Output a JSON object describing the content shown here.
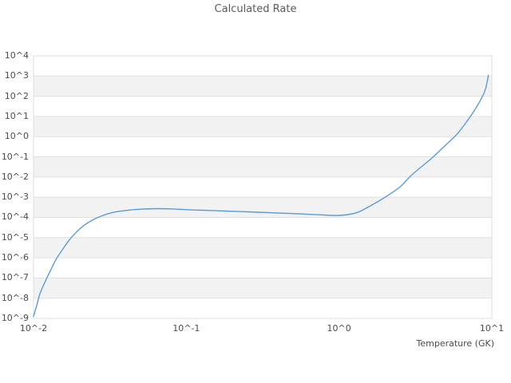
{
  "colors": {
    "line": "#5b9bd5",
    "grid_line": "#e0e0e0",
    "band_fill": "#f2f2f2",
    "plot_border": "#dcdcdc",
    "title_text": "#5a5a5a",
    "tick_text": "#4a4a4a",
    "background": "#ffffff"
  },
  "chart_data": {
    "type": "line",
    "title": "Calculated Rate",
    "xlabel": "Temperature (GK)",
    "ylabel": "",
    "x_scale": "log10",
    "y_scale": "log10",
    "xlim": [
      0.01,
      10
    ],
    "ylim": [
      1e-09,
      10000.0
    ],
    "grid": "horizontal-only",
    "background_bands": "alternating gray decade bands",
    "legend_position": "none",
    "xtick_values": [
      0.01,
      0.1,
      1,
      10
    ],
    "xtick_labels": [
      "10^-2",
      "10^-1",
      "10^0",
      "10^1"
    ],
    "ytick_exponents": [
      4,
      3,
      2,
      1,
      0,
      -1,
      -2,
      -3,
      -4,
      -5,
      -6,
      -7,
      -8,
      -9
    ],
    "ytick_labels": [
      "10^4",
      "10^3",
      "10^2",
      "10^1",
      "10^0",
      "10^-1",
      "10^-2",
      "10^-3",
      "10^-4",
      "10^-5",
      "10^-6",
      "10^-7",
      "10^-8",
      "10^-9"
    ],
    "series": [
      {
        "name": "calculated rate",
        "color": "#5b9bd5",
        "x": [
          0.01,
          0.0105,
          0.011,
          0.012,
          0.013,
          0.014,
          0.0155,
          0.017,
          0.019,
          0.021,
          0.024,
          0.028,
          0.033,
          0.04,
          0.05,
          0.065,
          0.08,
          0.1,
          0.13,
          0.17,
          0.22,
          0.3,
          0.4,
          0.55,
          0.75,
          1.0,
          1.3,
          1.7,
          2.0,
          2.5,
          3.0,
          4.0,
          5.0,
          6.0,
          7.0,
          8.0,
          9.0,
          9.5
        ],
        "y": [
          1.25e-09,
          4.5e-09,
          1.6e-08,
          7.5e-08,
          2.6e-07,
          8e-07,
          2.6e-06,
          7e-06,
          1.8e-05,
          3.6e-05,
          7e-05,
          0.00012,
          0.000175,
          0.00022,
          0.000255,
          0.00027,
          0.000265,
          0.00024,
          0.000225,
          0.00021,
          0.000195,
          0.00018,
          0.000165,
          0.00015,
          0.000135,
          0.000125,
          0.00017,
          0.00048,
          0.001,
          0.0032,
          0.013,
          0.08,
          0.39,
          1.5,
          7.0,
          32,
          180,
          1100
        ]
      }
    ]
  }
}
